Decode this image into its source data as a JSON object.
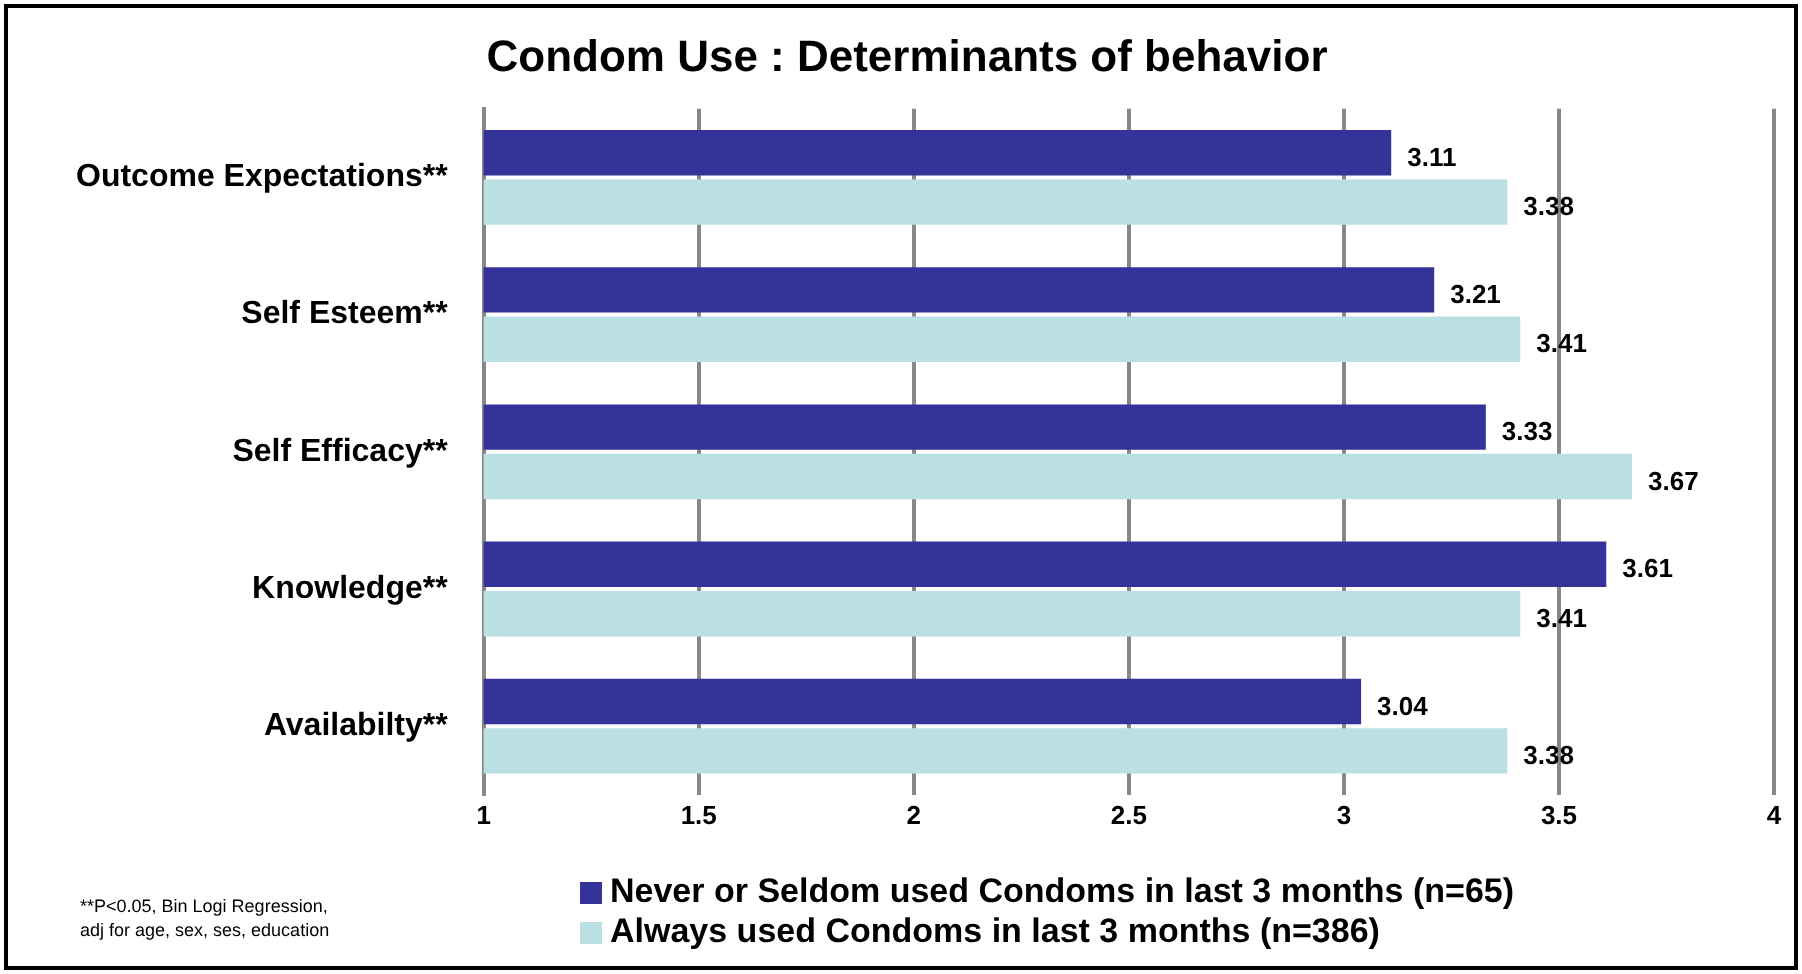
{
  "chart_data": {
    "type": "bar",
    "orientation": "horizontal",
    "title": "Condom Use : Determinants of behavior",
    "categories": [
      "Outcome Expectations**",
      "Self Esteem**",
      "Self Efficacy**",
      "Knowledge**",
      "Availabilty**"
    ],
    "series": [
      {
        "name": "Never or Seldom used Condoms in last 3 months (n=65)",
        "color": "#333399",
        "values": [
          3.11,
          3.21,
          3.33,
          3.61,
          3.04
        ]
      },
      {
        "name": "Always used Condoms in last 3 months (n=386)",
        "color": "#bbe0e3",
        "values": [
          3.38,
          3.41,
          3.67,
          3.41,
          3.38
        ]
      }
    ],
    "xlim": [
      1,
      4
    ],
    "xticks": [
      1,
      1.5,
      2,
      2.5,
      3,
      3.5,
      4
    ],
    "grid": "x",
    "legend": "bottom",
    "data_labels": true,
    "annotations": [
      "**P<0.05, Bin Logi Regression,",
      "adj for age, sex, ses, education"
    ]
  }
}
